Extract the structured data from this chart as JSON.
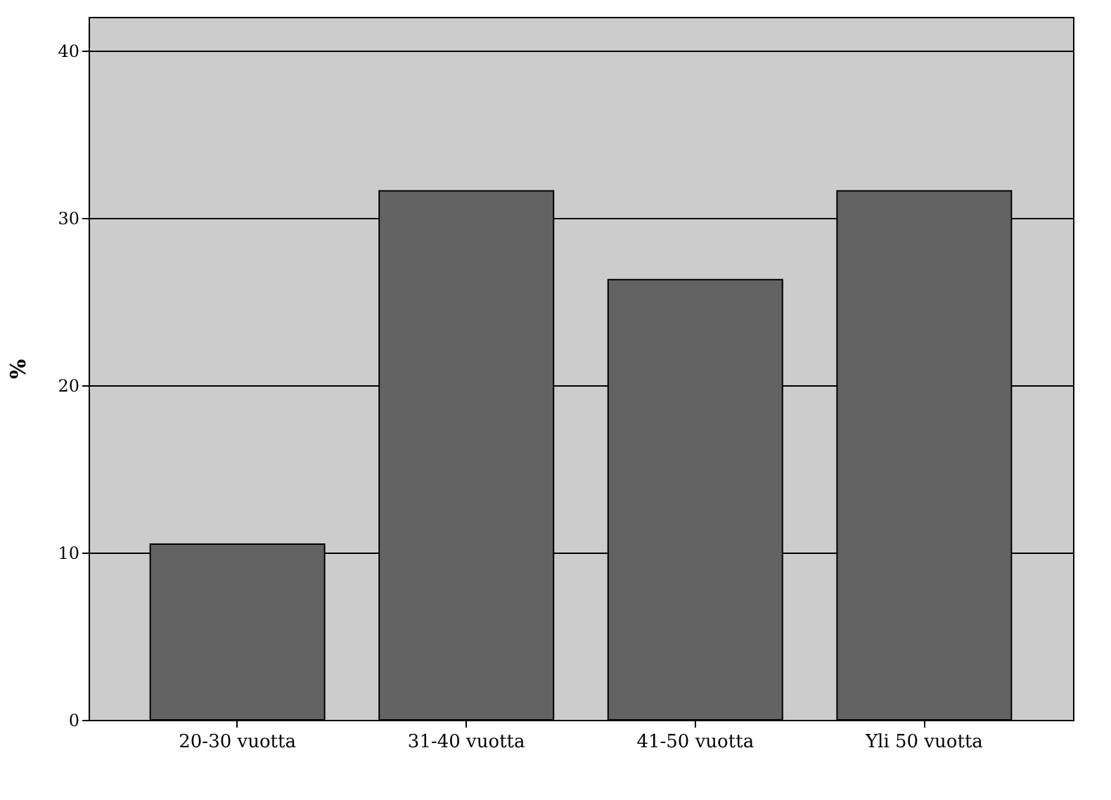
{
  "chart_data": {
    "type": "bar",
    "ylabel": "%",
    "categories": [
      "20-30 vuotta",
      "31-40 vuotta",
      "41-50 vuotta",
      "Yli 50 vuotta"
    ],
    "values": [
      10.5,
      31.6,
      26.3,
      31.6
    ],
    "color": "#636363",
    "ylim": [
      0,
      42
    ],
    "yticks": [
      0,
      10,
      20,
      30,
      40
    ],
    "grid": "y"
  }
}
